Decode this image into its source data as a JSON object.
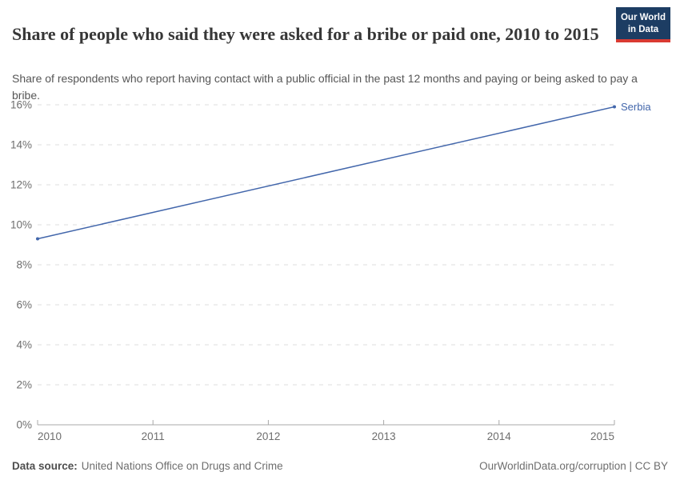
{
  "header": {
    "title": "Share of people who said they were asked for a bribe or paid one, 2010 to 2015",
    "subtitle": "Share of respondents who report having contact with a public official in the past 12 months and paying or being asked to pay a bribe."
  },
  "logo": {
    "line1": "Our World",
    "line2": "in Data",
    "bg_color": "#1d3d63",
    "accent_color": "#d93a32",
    "text_color": "#ffffff"
  },
  "footer": {
    "datasource_label": "Data source:",
    "datasource_value": "United Nations Office on Drugs and Crime",
    "citation": "OurWorldinData.org/corruption | CC BY"
  },
  "colors": {
    "gridline": "#dcdcdc",
    "axis_line": "#a8a8a8",
    "tick_label": "#6e6e6e",
    "series_blue": "#4266ab"
  },
  "chart_data": {
    "type": "line",
    "title": "Share of people who said they were asked for a bribe or paid one, 2010 to 2015",
    "xlabel": "",
    "ylabel": "",
    "xlim": [
      2010,
      2015
    ],
    "ylim": [
      0,
      16
    ],
    "x_ticks": [
      2010,
      2011,
      2012,
      2013,
      2014,
      2015
    ],
    "y_ticks": [
      0,
      2,
      4,
      6,
      8,
      10,
      12,
      14,
      16
    ],
    "y_tick_suffix": "%",
    "grid": "horizontal-dashed",
    "legend_position": "end-of-line-label",
    "series": [
      {
        "name": "Serbia",
        "color": "#4266ab",
        "points": [
          {
            "x": 2010,
            "y": 9.3
          },
          {
            "x": 2015,
            "y": 15.9
          }
        ]
      }
    ]
  }
}
